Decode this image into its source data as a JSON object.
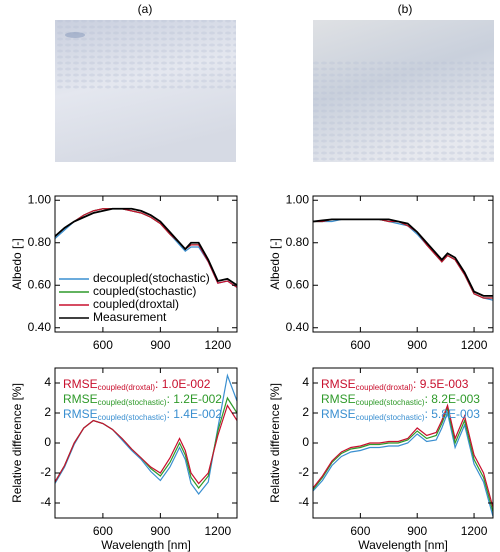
{
  "panel_labels": [
    "(a)",
    "(b)"
  ],
  "chart_data": [
    {
      "type": "line",
      "ylabel": "Albedo [-]",
      "x": [
        350,
        400,
        450,
        500,
        550,
        600,
        650,
        700,
        750,
        800,
        850,
        900,
        950,
        1000,
        1030,
        1060,
        1100,
        1150,
        1200,
        1250,
        1300
      ],
      "xlim": [
        350,
        1300
      ],
      "xticks": [
        600,
        900,
        1200
      ],
      "ylim": [
        0.38,
        1.02
      ],
      "yticks": [
        {
          "value": 0.4,
          "label": "0.40"
        },
        {
          "value": 0.6,
          "label": "0.60"
        },
        {
          "value": 0.8,
          "label": "0.80"
        },
        {
          "value": 1.0,
          "label": "1.00"
        }
      ],
      "legend": "lower left",
      "series": [
        {
          "name": "decoupled(stochastic)",
          "color": "#3a8fd0",
          "values": [
            0.82,
            0.86,
            0.9,
            0.93,
            0.95,
            0.96,
            0.96,
            0.96,
            0.95,
            0.94,
            0.92,
            0.89,
            0.84,
            0.79,
            0.76,
            0.78,
            0.78,
            0.71,
            0.61,
            0.62,
            0.59
          ]
        },
        {
          "name": "coupled(stochastic)",
          "color": "#2f9a2a",
          "values": [
            0.83,
            0.87,
            0.9,
            0.93,
            0.95,
            0.96,
            0.96,
            0.96,
            0.95,
            0.94,
            0.92,
            0.89,
            0.84,
            0.8,
            0.77,
            0.79,
            0.79,
            0.72,
            0.62,
            0.63,
            0.6
          ]
        },
        {
          "name": "coupled(droxtal)",
          "color": "#c8102e",
          "values": [
            0.83,
            0.87,
            0.9,
            0.93,
            0.95,
            0.96,
            0.96,
            0.96,
            0.95,
            0.94,
            0.92,
            0.89,
            0.84,
            0.8,
            0.77,
            0.79,
            0.79,
            0.71,
            0.61,
            0.62,
            0.59
          ]
        },
        {
          "name": "Measurement",
          "color": "#000000",
          "values": [
            0.83,
            0.87,
            0.9,
            0.92,
            0.94,
            0.95,
            0.96,
            0.96,
            0.96,
            0.95,
            0.93,
            0.9,
            0.85,
            0.8,
            0.77,
            0.8,
            0.8,
            0.72,
            0.62,
            0.63,
            0.6
          ]
        }
      ]
    },
    {
      "type": "line",
      "ylabel": "Albedo [-]",
      "x": [
        350,
        400,
        450,
        500,
        550,
        600,
        650,
        700,
        750,
        800,
        850,
        900,
        950,
        1000,
        1030,
        1060,
        1100,
        1150,
        1200,
        1250,
        1300
      ],
      "xlim": [
        350,
        1300
      ],
      "xticks": [
        600,
        900,
        1200
      ],
      "ylim": [
        0.38,
        1.02
      ],
      "yticks": [
        {
          "value": 0.4,
          "label": "0.40"
        },
        {
          "value": 0.6,
          "label": "0.60"
        },
        {
          "value": 0.8,
          "label": "0.80"
        },
        {
          "value": 1.0,
          "label": "1.00"
        }
      ],
      "series": [
        {
          "name": "decoupled(stochastic)",
          "color": "#3a8fd0",
          "values": [
            0.9,
            0.9,
            0.9,
            0.91,
            0.91,
            0.91,
            0.91,
            0.91,
            0.9,
            0.89,
            0.88,
            0.84,
            0.79,
            0.74,
            0.71,
            0.74,
            0.72,
            0.65,
            0.56,
            0.54,
            0.53
          ]
        },
        {
          "name": "coupled(stochastic)",
          "color": "#2f9a2a",
          "values": [
            0.9,
            0.9,
            0.91,
            0.91,
            0.91,
            0.91,
            0.91,
            0.91,
            0.9,
            0.9,
            0.88,
            0.85,
            0.79,
            0.74,
            0.71,
            0.74,
            0.72,
            0.65,
            0.56,
            0.54,
            0.54
          ]
        },
        {
          "name": "coupled(droxtal)",
          "color": "#c8102e",
          "values": [
            0.9,
            0.9,
            0.91,
            0.91,
            0.91,
            0.91,
            0.91,
            0.91,
            0.9,
            0.9,
            0.88,
            0.85,
            0.79,
            0.74,
            0.71,
            0.74,
            0.72,
            0.65,
            0.56,
            0.54,
            0.54
          ]
        },
        {
          "name": "Measurement",
          "color": "#000000",
          "values": [
            0.9,
            0.905,
            0.91,
            0.91,
            0.91,
            0.91,
            0.91,
            0.91,
            0.91,
            0.9,
            0.89,
            0.85,
            0.8,
            0.75,
            0.72,
            0.75,
            0.73,
            0.66,
            0.57,
            0.55,
            0.55
          ]
        }
      ]
    },
    {
      "type": "line",
      "ylabel": "Relative difference [%]",
      "xlabel": "Wavelength [nm]",
      "x": [
        350,
        400,
        450,
        500,
        550,
        600,
        650,
        700,
        750,
        800,
        850,
        900,
        950,
        1000,
        1030,
        1060,
        1100,
        1150,
        1200,
        1250,
        1300
      ],
      "xlim": [
        350,
        1300
      ],
      "xticks": [
        600,
        900,
        1200
      ],
      "ylim": [
        -5,
        5
      ],
      "yticks": [
        -4,
        -2,
        0,
        2,
        4
      ],
      "annotations": [
        {
          "text": "RMSE",
          "subscript": "coupled(droxtal)",
          "suffix": ": 1.0E-002",
          "color": "#c8102e"
        },
        {
          "text": "RMSE",
          "subscript": "coupled(stochastic)",
          "suffix": ": 1.2E-002",
          "color": "#2f9a2a"
        },
        {
          "text": "RMSE",
          "subscript": "coupled(stochastic)",
          "suffix": ": 1.4E-002",
          "color": "#3a8fd0"
        }
      ],
      "series": [
        {
          "name": "decoupled(stochastic)",
          "color": "#3a8fd0",
          "values": [
            -2.7,
            -1.6,
            -0.1,
            1.0,
            1.5,
            1.3,
            0.9,
            0.2,
            -0.5,
            -1.1,
            -1.9,
            -2.5,
            -1.6,
            -0.3,
            -1.1,
            -2.7,
            -3.4,
            -2.6,
            1.0,
            4.5,
            2.8
          ]
        },
        {
          "name": "coupled(stochastic)",
          "color": "#2f9a2a",
          "values": [
            -2.6,
            -1.5,
            0,
            1.0,
            1.5,
            1.3,
            0.9,
            0.3,
            -0.4,
            -1.0,
            -1.7,
            -2.2,
            -1.3,
            0.0,
            -0.8,
            -2.3,
            -3.0,
            -2.2,
            0.8,
            3.0,
            2.0
          ]
        },
        {
          "name": "coupled(droxtal)",
          "color": "#c8102e",
          "values": [
            -2.6,
            -1.5,
            0,
            1.0,
            1.5,
            1.3,
            0.9,
            0.3,
            -0.4,
            -1.0,
            -1.6,
            -2.0,
            -1.0,
            0.3,
            -0.5,
            -2.0,
            -2.7,
            -2.0,
            0.5,
            2.5,
            1.5
          ]
        }
      ]
    },
    {
      "type": "line",
      "ylabel": "Relative difference [%]",
      "xlabel": "Wavelength [nm]",
      "x": [
        350,
        400,
        450,
        500,
        550,
        600,
        650,
        700,
        750,
        800,
        850,
        900,
        950,
        1000,
        1030,
        1060,
        1100,
        1150,
        1200,
        1250,
        1300
      ],
      "xlim": [
        350,
        1300
      ],
      "xticks": [
        600,
        900,
        1200
      ],
      "ylim": [
        -5,
        5
      ],
      "yticks": [
        -4,
        -2,
        0,
        2,
        4
      ],
      "annotations": [
        {
          "text": "RMSE",
          "subscript": "coupled(droxtal)",
          "suffix": ": 9.5E-003",
          "color": "#c8102e"
        },
        {
          "text": "RMSE",
          "subscript": "coupled(stochastic)",
          "suffix": ": 8.2E-003",
          "color": "#2f9a2a"
        },
        {
          "text": "RMSE",
          "subscript": "coupled(stochastic)",
          "suffix": ": 5.8E-003",
          "color": "#3a8fd0"
        }
      ],
      "series": [
        {
          "name": "decoupled(stochastic)",
          "color": "#3a8fd0",
          "values": [
            -3.2,
            -2.5,
            -1.5,
            -0.9,
            -0.6,
            -0.5,
            -0.3,
            -0.3,
            -0.2,
            -0.2,
            0,
            0.6,
            0.1,
            0.2,
            1.0,
            2.0,
            -0.3,
            1.2,
            -1.4,
            -2.6,
            -4.9
          ]
        },
        {
          "name": "coupled(stochastic)",
          "color": "#2f9a2a",
          "values": [
            -3.1,
            -2.3,
            -1.3,
            -0.7,
            -0.4,
            -0.3,
            -0.1,
            -0.1,
            0,
            0,
            0.2,
            0.8,
            0.3,
            0.5,
            1.3,
            2.3,
            0,
            1.5,
            -1.1,
            -2.3,
            -4.6
          ]
        },
        {
          "name": "coupled(droxtal)",
          "color": "#c8102e",
          "values": [
            -3.0,
            -2.2,
            -1.2,
            -0.6,
            -0.3,
            -0.2,
            0,
            0,
            0.1,
            0.1,
            0.3,
            1.0,
            0.5,
            0.7,
            1.5,
            2.5,
            0.3,
            1.8,
            -0.8,
            -2.0,
            -4.3
          ]
        }
      ]
    }
  ]
}
